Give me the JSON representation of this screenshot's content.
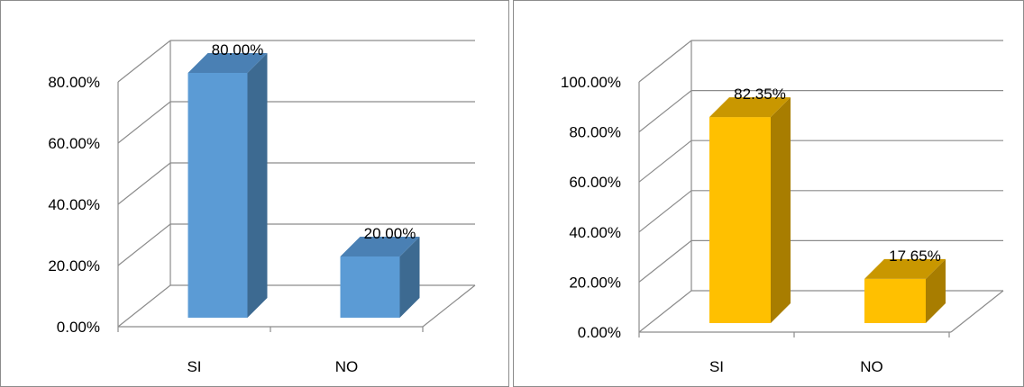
{
  "chart_data": [
    {
      "type": "bar",
      "categories": [
        "SI",
        "NO"
      ],
      "values": [
        80.0,
        20.0
      ],
      "data_labels": [
        "80.00%",
        "20.00%"
      ],
      "y_ticks": [
        "0.00%",
        "20.00%",
        "40.00%",
        "60.00%",
        "80.00%"
      ],
      "ylim": [
        0,
        80
      ],
      "grid": true,
      "three_d": true,
      "bar_color": "#5b9bd5",
      "bar_side_color": "#3d6a91",
      "bar_top_color": "#4a80b4"
    },
    {
      "type": "bar",
      "categories": [
        "SI",
        "NO"
      ],
      "values": [
        82.35,
        17.65
      ],
      "data_labels": [
        "82.35%",
        "17.65%"
      ],
      "y_ticks": [
        "0.00%",
        "20.00%",
        "40.00%",
        "60.00%",
        "80.00%",
        "100.00%"
      ],
      "ylim": [
        0,
        100
      ],
      "grid": true,
      "three_d": true,
      "bar_color": "#ffc000",
      "bar_side_color": "#a87d00",
      "bar_top_color": "#c99700"
    }
  ]
}
